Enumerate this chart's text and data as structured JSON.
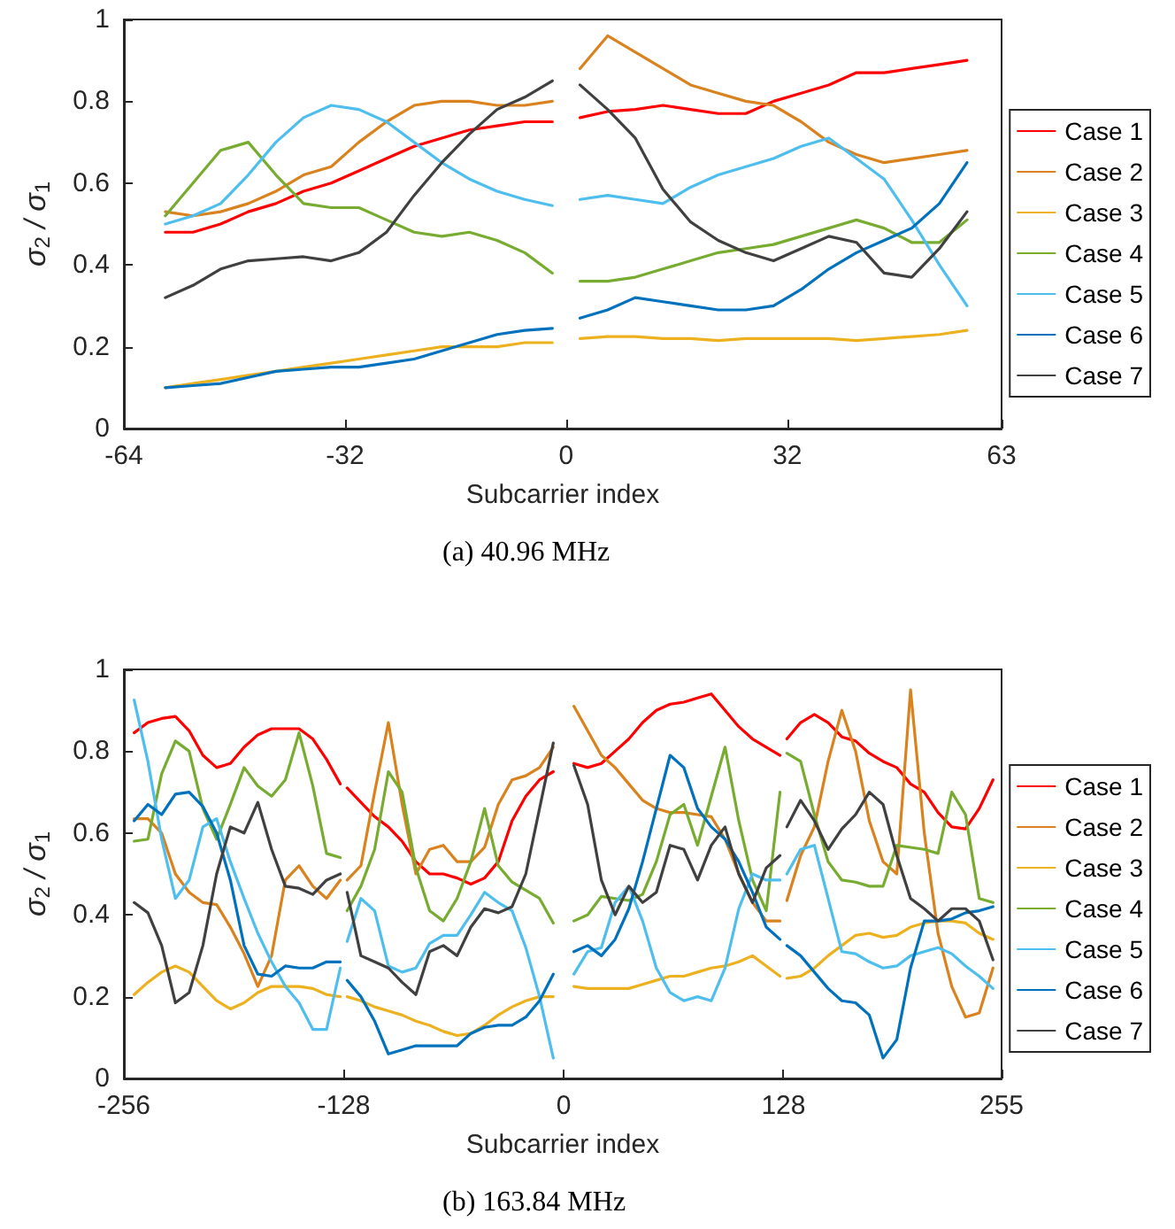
{
  "chart_data": [
    {
      "type": "line",
      "xlabel": "Subcarrier index",
      "ylabel": "σ$_{2}$ / σ$_{1}$",
      "annotations": [
        "(a) 40.96 MHz"
      ],
      "legend": "right",
      "grid": false,
      "marker": "none",
      "xlim": [
        -64,
        63
      ],
      "xticks": [
        -64,
        -32,
        0,
        32,
        63
      ],
      "ylim": [
        0,
        1
      ],
      "yticks": [
        0,
        0.2,
        0.4,
        0.6,
        0.8,
        1
      ],
      "x": [
        -58,
        -54,
        -50,
        -46,
        -42,
        -38,
        -34,
        -30,
        -26,
        -22,
        -18,
        -14,
        -10,
        -6,
        -2,
        0,
        2,
        6,
        10,
        14,
        18,
        22,
        26,
        30,
        34,
        38,
        42,
        46,
        50,
        54,
        58
      ],
      "series": [
        {
          "name": "Case 1",
          "color": "#ff0000",
          "values": [
            0.48,
            0.48,
            0.5,
            0.53,
            0.55,
            0.58,
            0.6,
            0.63,
            0.66,
            0.69,
            0.71,
            0.73,
            0.74,
            0.75,
            0.75,
            null,
            0.76,
            0.775,
            0.78,
            0.79,
            0.78,
            0.77,
            0.77,
            0.8,
            0.82,
            0.84,
            0.87,
            0.87,
            0.88,
            0.89,
            0.9
          ]
        },
        {
          "name": "Case 2",
          "color": "#d9821e",
          "values": [
            0.53,
            0.52,
            0.53,
            0.55,
            0.58,
            0.62,
            0.64,
            0.7,
            0.75,
            0.79,
            0.8,
            0.8,
            0.79,
            0.79,
            0.8,
            null,
            0.88,
            0.96,
            0.92,
            0.88,
            0.84,
            0.82,
            0.8,
            0.79,
            0.75,
            0.7,
            0.67,
            0.65,
            0.66,
            0.67,
            0.68
          ]
        },
        {
          "name": "Case 3",
          "color": "#edb120",
          "values": [
            0.1,
            0.11,
            0.12,
            0.13,
            0.14,
            0.15,
            0.16,
            0.17,
            0.18,
            0.19,
            0.2,
            0.2,
            0.2,
            0.21,
            0.21,
            null,
            0.22,
            0.225,
            0.225,
            0.22,
            0.22,
            0.215,
            0.22,
            0.22,
            0.22,
            0.22,
            0.215,
            0.22,
            0.225,
            0.23,
            0.24
          ]
        },
        {
          "name": "Case 4",
          "color": "#77ac30",
          "values": [
            0.52,
            0.6,
            0.68,
            0.7,
            0.62,
            0.55,
            0.54,
            0.54,
            0.51,
            0.48,
            0.47,
            0.48,
            0.46,
            0.43,
            0.38,
            null,
            0.36,
            0.36,
            0.37,
            0.39,
            0.41,
            0.43,
            0.44,
            0.45,
            0.47,
            0.49,
            0.51,
            0.49,
            0.455,
            0.455,
            0.51
          ]
        },
        {
          "name": "Case 5",
          "color": "#4dbeee",
          "values": [
            0.5,
            0.52,
            0.55,
            0.62,
            0.7,
            0.76,
            0.79,
            0.78,
            0.75,
            0.7,
            0.65,
            0.61,
            0.58,
            0.56,
            0.545,
            null,
            0.56,
            0.57,
            0.56,
            0.55,
            0.59,
            0.62,
            0.64,
            0.66,
            0.69,
            0.71,
            0.66,
            0.61,
            0.51,
            0.4,
            0.3
          ]
        },
        {
          "name": "Case 6",
          "color": "#0072bd",
          "values": [
            0.1,
            0.105,
            0.11,
            0.125,
            0.14,
            0.145,
            0.15,
            0.15,
            0.16,
            0.17,
            0.19,
            0.21,
            0.23,
            0.24,
            0.245,
            null,
            0.27,
            0.29,
            0.32,
            0.31,
            0.3,
            0.29,
            0.29,
            0.3,
            0.34,
            0.39,
            0.43,
            0.46,
            0.49,
            0.55,
            0.65
          ]
        },
        {
          "name": "Case 7",
          "color": "#404040",
          "values": [
            0.32,
            0.35,
            0.39,
            0.41,
            0.415,
            0.42,
            0.41,
            0.43,
            0.48,
            0.57,
            0.65,
            0.72,
            0.78,
            0.81,
            0.85,
            null,
            0.84,
            0.78,
            0.71,
            0.585,
            0.505,
            0.46,
            0.43,
            0.41,
            0.44,
            0.47,
            0.455,
            0.38,
            0.37,
            0.44,
            0.53
          ]
        }
      ]
    },
    {
      "type": "line",
      "xlabel": "Subcarrier index",
      "ylabel": "σ$_{2}$ / σ$_{1}$",
      "annotations": [
        "(b) 163.84 MHz"
      ],
      "legend": "right",
      "grid": false,
      "marker": "none",
      "xlim": [
        -256,
        255
      ],
      "xticks": [
        -256,
        -128,
        0,
        128,
        255
      ],
      "ylim": [
        0,
        1
      ],
      "yticks": [
        0,
        0.2,
        0.4,
        0.6,
        0.8,
        1
      ],
      "x": [
        -250,
        -242,
        -234,
        -226,
        -218,
        -210,
        -202,
        -194,
        -186,
        -178,
        -170,
        -162,
        -154,
        -146,
        -138,
        -130,
        -128,
        -126,
        -118,
        -110,
        -102,
        -94,
        -86,
        -78,
        -70,
        -62,
        -54,
        -46,
        -38,
        -30,
        -22,
        -14,
        -6,
        0,
        6,
        14,
        22,
        30,
        38,
        46,
        54,
        62,
        70,
        78,
        86,
        94,
        102,
        110,
        118,
        126,
        128,
        130,
        138,
        146,
        154,
        162,
        170,
        178,
        186,
        194,
        202,
        210,
        218,
        226,
        234,
        242,
        250
      ],
      "series": [
        {
          "name": "Case 1",
          "color": "#ff0000",
          "values": [
            0.845,
            0.87,
            0.88,
            0.885,
            0.85,
            0.79,
            0.76,
            0.77,
            0.81,
            0.84,
            0.855,
            0.855,
            0.855,
            0.83,
            0.78,
            0.72,
            null,
            0.71,
            0.675,
            0.64,
            0.615,
            0.58,
            0.53,
            0.5,
            0.5,
            0.49,
            0.475,
            0.49,
            0.53,
            0.63,
            0.69,
            0.73,
            0.75,
            null,
            0.77,
            0.76,
            0.77,
            0.8,
            0.83,
            0.87,
            0.9,
            0.915,
            0.92,
            0.93,
            0.94,
            0.9,
            0.86,
            0.83,
            0.81,
            0.79,
            null,
            0.83,
            0.87,
            0.89,
            0.87,
            0.835,
            0.825,
            0.795,
            0.775,
            0.76,
            0.72,
            0.7,
            0.65,
            0.615,
            0.61,
            0.66,
            0.73
          ]
        },
        {
          "name": "Case 2",
          "color": "#d9821e",
          "values": [
            0.635,
            0.635,
            0.6,
            0.5,
            0.455,
            0.43,
            0.425,
            0.37,
            0.305,
            0.225,
            0.3,
            0.485,
            0.52,
            0.47,
            0.44,
            0.485,
            null,
            0.485,
            0.52,
            0.7,
            0.87,
            0.67,
            0.5,
            0.56,
            0.57,
            0.53,
            0.53,
            0.565,
            0.67,
            0.73,
            0.74,
            0.76,
            0.81,
            null,
            0.91,
            0.85,
            0.79,
            0.76,
            0.72,
            0.68,
            0.66,
            0.65,
            0.65,
            0.645,
            0.64,
            0.585,
            0.5,
            0.43,
            0.385,
            0.385,
            null,
            0.435,
            0.545,
            0.615,
            0.775,
            0.9,
            0.8,
            0.63,
            0.53,
            0.5,
            0.95,
            0.6,
            0.355,
            0.225,
            0.15,
            0.16,
            0.27
          ]
        },
        {
          "name": "Case 3",
          "color": "#edb120",
          "values": [
            0.205,
            0.235,
            0.26,
            0.275,
            0.26,
            0.225,
            0.19,
            0.17,
            0.185,
            0.21,
            0.225,
            0.225,
            0.225,
            0.22,
            0.205,
            0.2,
            null,
            0.2,
            0.19,
            0.175,
            0.165,
            0.155,
            0.14,
            0.13,
            0.115,
            0.105,
            0.11,
            0.13,
            0.155,
            0.175,
            0.19,
            0.2,
            0.2,
            null,
            0.225,
            0.22,
            0.22,
            0.22,
            0.22,
            0.23,
            0.24,
            0.25,
            0.25,
            0.26,
            0.27,
            0.275,
            0.285,
            0.3,
            0.275,
            0.25,
            null,
            0.245,
            0.25,
            0.27,
            0.3,
            0.325,
            0.35,
            0.355,
            0.345,
            0.35,
            0.37,
            0.38,
            0.385,
            0.385,
            0.38,
            0.355,
            0.34
          ]
        },
        {
          "name": "Case 4",
          "color": "#77ac30",
          "values": [
            0.58,
            0.585,
            0.745,
            0.825,
            0.8,
            0.66,
            0.585,
            0.67,
            0.76,
            0.715,
            0.69,
            0.73,
            0.845,
            0.715,
            0.55,
            0.54,
            null,
            0.41,
            0.47,
            0.56,
            0.75,
            0.7,
            0.515,
            0.41,
            0.385,
            0.44,
            0.53,
            0.66,
            0.52,
            0.48,
            0.46,
            0.44,
            0.38,
            null,
            0.385,
            0.4,
            0.445,
            0.44,
            0.435,
            0.45,
            0.53,
            0.645,
            0.67,
            0.57,
            0.69,
            0.81,
            0.63,
            0.485,
            0.41,
            0.7,
            null,
            0.795,
            0.775,
            0.645,
            0.53,
            0.485,
            0.48,
            0.47,
            0.47,
            0.57,
            0.565,
            0.56,
            0.55,
            0.7,
            0.645,
            0.44,
            0.43
          ]
        },
        {
          "name": "Case 5",
          "color": "#4dbeee",
          "values": [
            0.925,
            0.775,
            0.585,
            0.44,
            0.485,
            0.615,
            0.635,
            0.53,
            0.44,
            0.355,
            0.285,
            0.225,
            0.185,
            0.12,
            0.12,
            0.27,
            null,
            0.335,
            0.44,
            0.41,
            0.275,
            0.26,
            0.27,
            0.33,
            0.35,
            0.35,
            0.4,
            0.455,
            0.43,
            0.41,
            0.32,
            0.2,
            0.05,
            null,
            0.255,
            0.31,
            0.32,
            0.43,
            0.47,
            0.385,
            0.27,
            0.21,
            0.19,
            0.2,
            0.19,
            0.27,
            0.415,
            0.5,
            0.485,
            0.485,
            null,
            0.5,
            0.56,
            0.57,
            0.44,
            0.31,
            0.305,
            0.285,
            0.27,
            0.275,
            0.3,
            0.31,
            0.32,
            0.305,
            0.275,
            0.25,
            0.22
          ]
        },
        {
          "name": "Case 6",
          "color": "#0072bd",
          "values": [
            0.63,
            0.67,
            0.645,
            0.695,
            0.7,
            0.665,
            0.6,
            0.485,
            0.325,
            0.255,
            0.25,
            0.275,
            0.27,
            0.27,
            0.285,
            0.285,
            null,
            0.24,
            0.2,
            0.14,
            0.06,
            0.07,
            0.08,
            0.08,
            0.08,
            0.08,
            0.11,
            0.125,
            0.13,
            0.13,
            0.15,
            0.19,
            0.255,
            null,
            0.31,
            0.325,
            0.3,
            0.34,
            0.415,
            0.53,
            0.66,
            0.79,
            0.76,
            0.66,
            0.615,
            0.585,
            0.53,
            0.455,
            0.37,
            0.34,
            null,
            0.325,
            0.3,
            0.26,
            0.22,
            0.19,
            0.185,
            0.155,
            0.05,
            0.095,
            0.27,
            0.385,
            0.385,
            0.39,
            0.405,
            0.41,
            0.42
          ]
        },
        {
          "name": "Case 7",
          "color": "#404040",
          "values": [
            0.43,
            0.405,
            0.325,
            0.185,
            0.21,
            0.325,
            0.5,
            0.615,
            0.6,
            0.675,
            0.56,
            0.47,
            0.465,
            0.45,
            0.485,
            0.5,
            null,
            0.455,
            0.3,
            0.285,
            0.27,
            0.235,
            0.205,
            0.31,
            0.325,
            0.3,
            0.37,
            0.415,
            0.405,
            0.42,
            0.5,
            0.66,
            0.82,
            null,
            0.765,
            0.67,
            0.485,
            0.4,
            0.47,
            0.43,
            0.455,
            0.57,
            0.56,
            0.485,
            0.57,
            0.615,
            0.5,
            0.43,
            0.515,
            0.545,
            null,
            0.615,
            0.68,
            0.63,
            0.56,
            0.61,
            0.645,
            0.7,
            0.67,
            0.545,
            0.44,
            0.415,
            0.385,
            0.415,
            0.415,
            0.385,
            0.29
          ]
        }
      ]
    }
  ]
}
